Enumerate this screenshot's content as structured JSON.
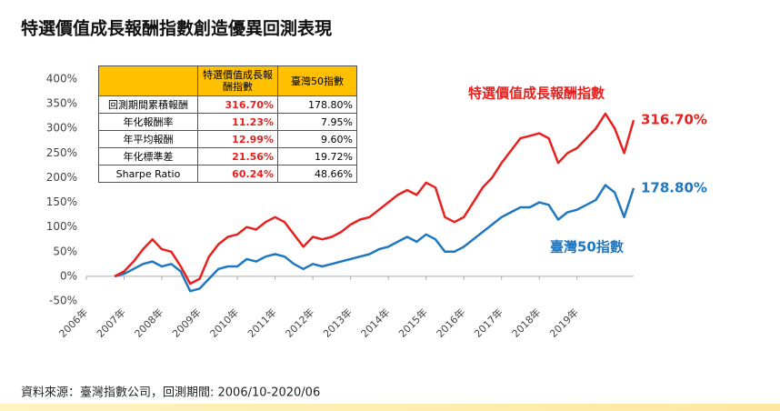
{
  "title": "特選價值成長報酬指數創造優異回測表現",
  "source": "資料來源：臺灣指數公司，回測期間: 2006/10-2020/06",
  "chart_data": {
    "type": "line",
    "x": [
      2006.75,
      2007,
      2007.25,
      2007.5,
      2007.75,
      2008,
      2008.25,
      2008.5,
      2008.75,
      2009,
      2009.25,
      2009.5,
      2009.75,
      2010,
      2010.25,
      2010.5,
      2010.75,
      2011,
      2011.25,
      2011.5,
      2011.75,
      2012,
      2012.25,
      2012.5,
      2012.75,
      2013,
      2013.25,
      2013.5,
      2013.75,
      2014,
      2014.25,
      2014.5,
      2014.75,
      2015,
      2015.25,
      2015.5,
      2015.75,
      2016,
      2016.25,
      2016.5,
      2016.75,
      2017,
      2017.25,
      2017.5,
      2017.75,
      2018,
      2018.25,
      2018.5,
      2018.75,
      2019,
      2019.25,
      2019.5,
      2019.75,
      2020,
      2020.25,
      2020.5
    ],
    "series": [
      {
        "name": "特選價值成長報酬指數",
        "color": "#e8201e",
        "end_label": "316.70%",
        "values": [
          0,
          10,
          30,
          55,
          75,
          55,
          50,
          20,
          -15,
          -5,
          40,
          65,
          80,
          85,
          100,
          95,
          110,
          120,
          110,
          85,
          60,
          80,
          75,
          80,
          90,
          105,
          115,
          120,
          135,
          150,
          165,
          175,
          165,
          190,
          180,
          120,
          110,
          120,
          150,
          180,
          200,
          230,
          255,
          280,
          285,
          290,
          280,
          230,
          250,
          260,
          280,
          300,
          330,
          300,
          250,
          316.7
        ]
      },
      {
        "name": "臺灣50指數",
        "color": "#1f77c0",
        "end_label": "178.80%",
        "values": [
          0,
          5,
          15,
          25,
          30,
          20,
          25,
          10,
          -30,
          -25,
          -5,
          15,
          20,
          20,
          35,
          30,
          40,
          45,
          40,
          25,
          15,
          25,
          20,
          25,
          30,
          35,
          40,
          45,
          55,
          60,
          70,
          80,
          70,
          85,
          75,
          50,
          50,
          60,
          75,
          90,
          105,
          120,
          130,
          140,
          140,
          150,
          145,
          115,
          130,
          135,
          145,
          155,
          185,
          170,
          120,
          178.8
        ]
      }
    ],
    "xlim": [
      2006,
      2020.5
    ],
    "xticks": [
      {
        "value": 2006,
        "label": "2006年"
      },
      {
        "value": 2007,
        "label": "2007年"
      },
      {
        "value": 2008,
        "label": "2008年"
      },
      {
        "value": 2009,
        "label": "2009年"
      },
      {
        "value": 2010,
        "label": "2010年"
      },
      {
        "value": 2011,
        "label": "2011年"
      },
      {
        "value": 2012,
        "label": "2012年"
      },
      {
        "value": 2013,
        "label": "2013年"
      },
      {
        "value": 2014,
        "label": "2014年"
      },
      {
        "value": 2015,
        "label": "2015年"
      },
      {
        "value": 2016,
        "label": "2016年"
      },
      {
        "value": 2017,
        "label": "2017年"
      },
      {
        "value": 2018,
        "label": "2018年"
      },
      {
        "value": 2019,
        "label": "2019年"
      }
    ],
    "ylim": [
      -50,
      400
    ],
    "yticks": [
      {
        "value": -50,
        "label": "-50%"
      },
      {
        "value": 0,
        "label": "0%"
      },
      {
        "value": 50,
        "label": "50%"
      },
      {
        "value": 100,
        "label": "100%"
      },
      {
        "value": 150,
        "label": "150%"
      },
      {
        "value": 200,
        "label": "200%"
      },
      {
        "value": 250,
        "label": "250%"
      },
      {
        "value": 300,
        "label": "300%"
      },
      {
        "value": 350,
        "label": "350%"
      },
      {
        "value": 400,
        "label": "400%"
      }
    ],
    "table": {
      "columns": [
        "特選價值成長報酬指數",
        "臺灣50指數"
      ],
      "rows": [
        [
          "回測期間累積報酬",
          "316.70%",
          "178.80%"
        ],
        [
          "年化報酬率",
          "11.23%",
          "7.95%"
        ],
        [
          "年平均報酬",
          "12.99%",
          "9.60%"
        ],
        [
          "年化標準差",
          "21.56%",
          "19.72%"
        ],
        [
          "Sharpe Ratio",
          "60.24%",
          "48.66%"
        ]
      ]
    }
  }
}
